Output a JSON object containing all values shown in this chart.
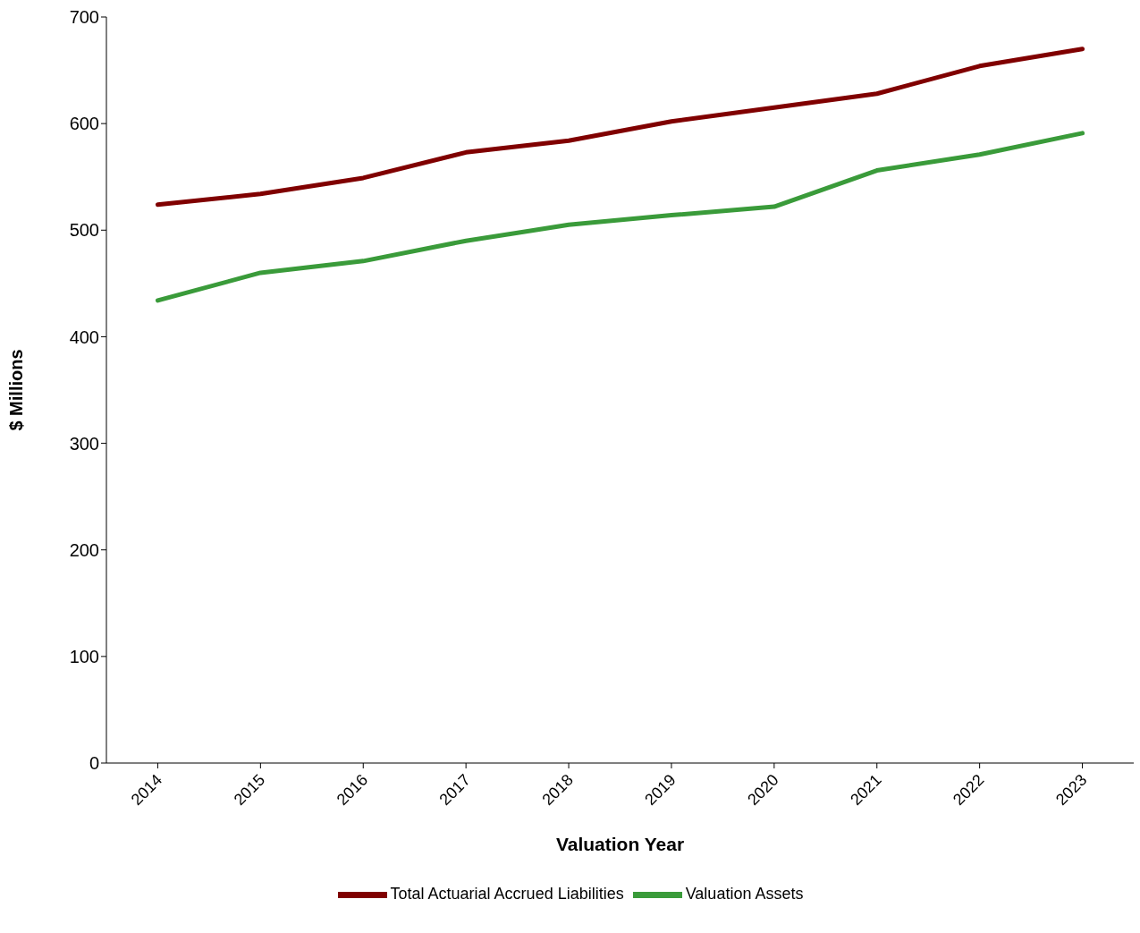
{
  "chart_data": {
    "type": "line",
    "xlabel": "Valuation Year",
    "ylabel": "$ Millions",
    "categories": [
      "2014",
      "2015",
      "2016",
      "2017",
      "2018",
      "2019",
      "2020",
      "2021",
      "2022",
      "2023"
    ],
    "series": [
      {
        "name": "Valuation Assets",
        "color": "#3a9b3a",
        "values": [
          434,
          460,
          471,
          490,
          505,
          514,
          522,
          556,
          571,
          591
        ]
      },
      {
        "name": "Total Actuarial Accrued Liabilities",
        "color": "#800000",
        "values": [
          524,
          534,
          549,
          573,
          584,
          602,
          615,
          628,
          654,
          670
        ]
      }
    ],
    "ylim": [
      0,
      700
    ],
    "yticks": [
      0,
      100,
      200,
      300,
      400,
      500,
      600,
      700
    ],
    "grid": false,
    "legend": "bottom"
  }
}
